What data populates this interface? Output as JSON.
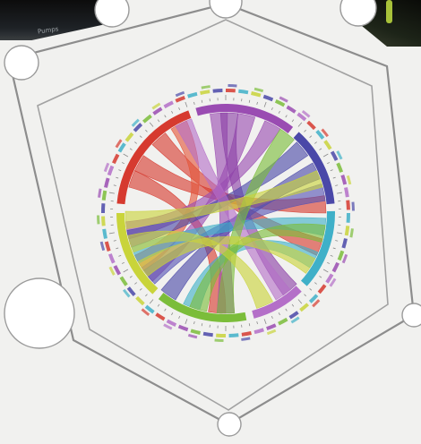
{
  "frame": {
    "background_color": "#f1f1ef",
    "outer_hexagon_color": "#8d8d8d",
    "inner_hexagon_color": "#a2a2a2",
    "node_fill": "#ffffff",
    "node_stroke": "#9a9a9a"
  },
  "photo_left": {
    "caption": "Pumps"
  },
  "circos": {
    "segments": [
      {
        "name": "seg-red",
        "color": "#d63a2f",
        "start_deg": 275,
        "end_deg": 340
      },
      {
        "name": "seg-purple",
        "color": "#9a4cb2",
        "start_deg": 344,
        "end_deg": 398
      },
      {
        "name": "seg-blue",
        "color": "#4a48a8",
        "start_deg": 402,
        "end_deg": 445
      },
      {
        "name": "seg-cyan",
        "color": "#3fb0c8",
        "start_deg": 449,
        "end_deg": 492
      },
      {
        "name": "seg-lilac",
        "color": "#b46fc8",
        "start_deg": 496,
        "end_deg": 525
      },
      {
        "name": "seg-green",
        "color": "#7bbd3a",
        "start_deg": 529,
        "end_deg": 578
      },
      {
        "name": "seg-yellow",
        "color": "#c9d43a",
        "start_deg": 582,
        "end_deg": 630
      }
    ],
    "ribbons": [
      {
        "from": 300,
        "to": 445,
        "color": "#d63a2f"
      },
      {
        "from": 318,
        "to": 470,
        "color": "#d63a2f"
      },
      {
        "from": 290,
        "to": 545,
        "color": "#d63a2f"
      },
      {
        "from": 332,
        "to": 600,
        "color": "#e3553a"
      },
      {
        "from": 356,
        "to": 540,
        "color": "#9a4cb2"
      },
      {
        "from": 372,
        "to": 592,
        "color": "#9a4cb2"
      },
      {
        "from": 388,
        "to": 620,
        "color": "#9a4cb2"
      },
      {
        "from": 362,
        "to": 500,
        "color": "#8a3fa6"
      },
      {
        "from": 410,
        "to": 615,
        "color": "#4a48a8"
      },
      {
        "from": 425,
        "to": 575,
        "color": "#4a48a8"
      },
      {
        "from": 438,
        "to": 590,
        "color": "#5553b4"
      },
      {
        "from": 458,
        "to": 605,
        "color": "#3fb0c8"
      },
      {
        "from": 478,
        "to": 560,
        "color": "#3fb0c8"
      },
      {
        "from": 505,
        "to": 335,
        "color": "#b46fc8"
      },
      {
        "from": 540,
        "to": 398,
        "color": "#7bbd3a"
      },
      {
        "from": 556,
        "to": 462,
        "color": "#7bbd3a"
      },
      {
        "from": 596,
        "to": 482,
        "color": "#c9d43a"
      },
      {
        "from": 612,
        "to": 517,
        "color": "#c9d43a"
      },
      {
        "from": 626,
        "to": 430,
        "color": "#c9d43a"
      }
    ]
  }
}
